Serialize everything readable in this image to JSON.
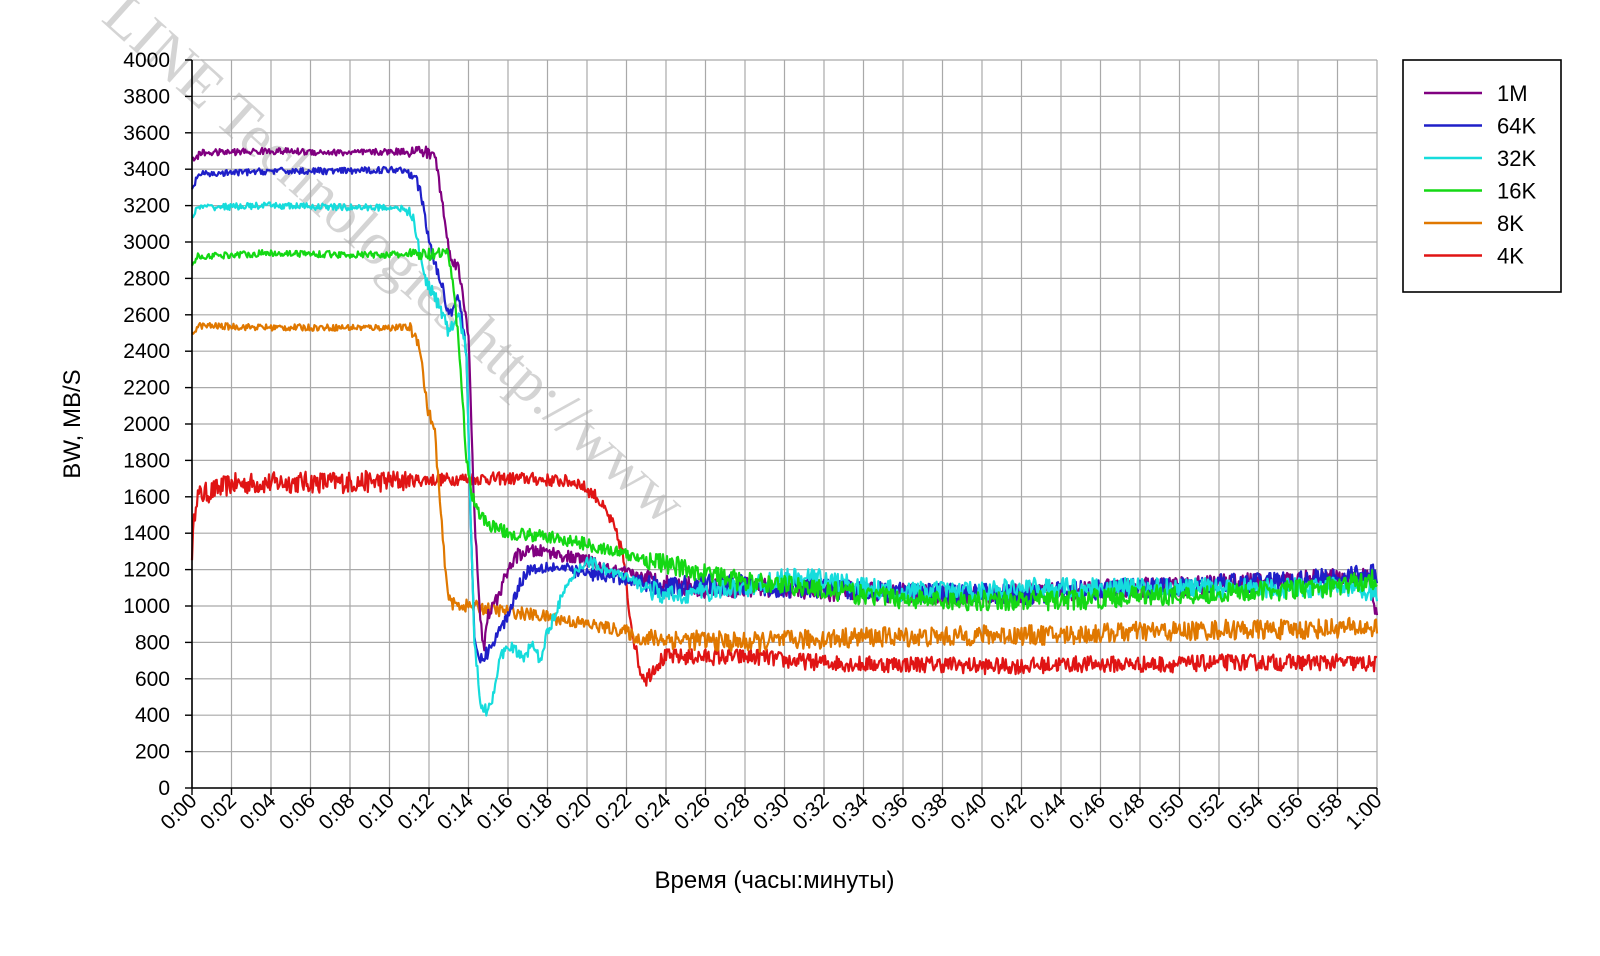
{
  "chart_data": {
    "type": "line",
    "title": "",
    "xlabel": "Время (часы:минуты)",
    "ylabel": "BW, MB/S",
    "ylim": [
      0,
      4000
    ],
    "xlim_minutes": [
      0,
      60
    ],
    "y_ticks": [
      "0",
      "200",
      "400",
      "600",
      "800",
      "1000",
      "1200",
      "1400",
      "1600",
      "1800",
      "2000",
      "2200",
      "2400",
      "2600",
      "2800",
      "3000",
      "3200",
      "3400",
      "3600",
      "3800",
      "4000"
    ],
    "x_ticks": [
      "0:00",
      "0:02",
      "0:04",
      "0:06",
      "0:08",
      "0:10",
      "0:12",
      "0:14",
      "0:16",
      "0:18",
      "0:20",
      "0:22",
      "0:24",
      "0:26",
      "0:28",
      "0:30",
      "0:32",
      "0:34",
      "0:36",
      "0:38",
      "0:40",
      "0:42",
      "0:44",
      "0:46",
      "0:48",
      "0:50",
      "0:52",
      "0:54",
      "0:56",
      "0:58",
      "1:00"
    ],
    "grid": true,
    "legend_position": "top-right",
    "watermark": "LINE Technologies http://www",
    "series": [
      {
        "name": "1M",
        "color": "#800080",
        "points": [
          [
            0,
            3450
          ],
          [
            0.5,
            3490
          ],
          [
            4,
            3500
          ],
          [
            8,
            3490
          ],
          [
            11.5,
            3500
          ],
          [
            12.3,
            3480
          ],
          [
            12.7,
            3200
          ],
          [
            13,
            2950
          ],
          [
            13.5,
            2850
          ],
          [
            14,
            2500
          ],
          [
            14.3,
            1500
          ],
          [
            14.6,
            900
          ],
          [
            14.8,
            780
          ],
          [
            15,
            950
          ],
          [
            15.5,
            1050
          ],
          [
            16,
            1200
          ],
          [
            16.5,
            1280
          ],
          [
            17,
            1300
          ],
          [
            18,
            1300
          ],
          [
            19,
            1270
          ],
          [
            20,
            1250
          ],
          [
            21,
            1200
          ],
          [
            22,
            1180
          ],
          [
            24,
            1120
          ],
          [
            26,
            1100
          ],
          [
            28,
            1100
          ],
          [
            30,
            1100
          ],
          [
            32,
            1080
          ],
          [
            34,
            1080
          ],
          [
            36,
            1070
          ],
          [
            38,
            1060
          ],
          [
            40,
            1060
          ],
          [
            42,
            1070
          ],
          [
            44,
            1080
          ],
          [
            46,
            1090
          ],
          [
            48,
            1100
          ],
          [
            50,
            1110
          ],
          [
            52,
            1120
          ],
          [
            54,
            1130
          ],
          [
            56,
            1140
          ],
          [
            58,
            1150
          ],
          [
            59.6,
            1150
          ],
          [
            60,
            920
          ]
        ]
      },
      {
        "name": "64K",
        "color": "#1f1fc8",
        "points": [
          [
            0,
            3280
          ],
          [
            0.3,
            3370
          ],
          [
            4,
            3390
          ],
          [
            8,
            3390
          ],
          [
            10.5,
            3400
          ],
          [
            11.3,
            3380
          ],
          [
            11.7,
            3200
          ],
          [
            12,
            3000
          ],
          [
            12.4,
            2850
          ],
          [
            12.8,
            2700
          ],
          [
            13,
            2600
          ],
          [
            13.5,
            2700
          ],
          [
            13.9,
            2400
          ],
          [
            14.1,
            1500
          ],
          [
            14.3,
            800
          ],
          [
            14.6,
            700
          ],
          [
            15,
            750
          ],
          [
            15.5,
            850
          ],
          [
            16,
            950
          ],
          [
            16.5,
            1100
          ],
          [
            17,
            1200
          ],
          [
            18,
            1220
          ],
          [
            19,
            1200
          ],
          [
            20,
            1180
          ],
          [
            21,
            1160
          ],
          [
            22,
            1150
          ],
          [
            24,
            1100
          ],
          [
            26,
            1120
          ],
          [
            28,
            1120
          ],
          [
            30,
            1100
          ],
          [
            32,
            1100
          ],
          [
            34,
            1080
          ],
          [
            36,
            1080
          ],
          [
            38,
            1070
          ],
          [
            40,
            1070
          ],
          [
            42,
            1060
          ],
          [
            44,
            1080
          ],
          [
            46,
            1090
          ],
          [
            48,
            1100
          ],
          [
            50,
            1100
          ],
          [
            52,
            1120
          ],
          [
            54,
            1130
          ],
          [
            56,
            1140
          ],
          [
            58,
            1160
          ],
          [
            60,
            1180
          ]
        ]
      },
      {
        "name": "32K",
        "color": "#16dcdc",
        "points": [
          [
            0,
            3130
          ],
          [
            0.3,
            3190
          ],
          [
            4,
            3200
          ],
          [
            8,
            3190
          ],
          [
            10.5,
            3190
          ],
          [
            11.2,
            3140
          ],
          [
            11.5,
            2950
          ],
          [
            11.8,
            2800
          ],
          [
            12.3,
            2700
          ],
          [
            12.7,
            2600
          ],
          [
            13,
            2500
          ],
          [
            13.5,
            2600
          ],
          [
            13.9,
            2400
          ],
          [
            14.1,
            1500
          ],
          [
            14.3,
            800
          ],
          [
            14.6,
            480
          ],
          [
            14.9,
            420
          ],
          [
            15.2,
            500
          ],
          [
            15.6,
            700
          ],
          [
            16,
            800
          ],
          [
            16.4,
            750
          ],
          [
            16.8,
            700
          ],
          [
            17.2,
            800
          ],
          [
            17.6,
            700
          ],
          [
            18,
            850
          ],
          [
            18.5,
            1000
          ],
          [
            19,
            1100
          ],
          [
            19.5,
            1200
          ],
          [
            20,
            1250
          ],
          [
            21,
            1200
          ],
          [
            22,
            1150
          ],
          [
            23,
            1100
          ],
          [
            24,
            1050
          ],
          [
            26,
            1080
          ],
          [
            28,
            1100
          ],
          [
            30,
            1150
          ],
          [
            32,
            1150
          ],
          [
            34,
            1100
          ],
          [
            36,
            1080
          ],
          [
            38,
            1080
          ],
          [
            40,
            1080
          ],
          [
            42,
            1100
          ],
          [
            44,
            1100
          ],
          [
            46,
            1100
          ],
          [
            48,
            1100
          ],
          [
            50,
            1100
          ],
          [
            52,
            1100
          ],
          [
            54,
            1100
          ],
          [
            56,
            1100
          ],
          [
            58,
            1100
          ],
          [
            60,
            1080
          ]
        ]
      },
      {
        "name": "16K",
        "color": "#14d814",
        "points": [
          [
            0,
            2870
          ],
          [
            0.3,
            2920
          ],
          [
            4,
            2940
          ],
          [
            8,
            2930
          ],
          [
            12,
            2930
          ],
          [
            13,
            2930
          ],
          [
            13.3,
            2700
          ],
          [
            13.6,
            2300
          ],
          [
            13.9,
            1800
          ],
          [
            14.2,
            1600
          ],
          [
            14.6,
            1500
          ],
          [
            15,
            1450
          ],
          [
            16,
            1400
          ],
          [
            18,
            1380
          ],
          [
            20,
            1340
          ],
          [
            22,
            1280
          ],
          [
            24,
            1230
          ],
          [
            26,
            1180
          ],
          [
            28,
            1130
          ],
          [
            30,
            1120
          ],
          [
            32,
            1090
          ],
          [
            34,
            1060
          ],
          [
            36,
            1040
          ],
          [
            38,
            1030
          ],
          [
            40,
            1030
          ],
          [
            42,
            1030
          ],
          [
            44,
            1030
          ],
          [
            46,
            1040
          ],
          [
            48,
            1060
          ],
          [
            50,
            1060
          ],
          [
            52,
            1070
          ],
          [
            54,
            1080
          ],
          [
            56,
            1090
          ],
          [
            58,
            1110
          ],
          [
            60,
            1150
          ]
        ]
      },
      {
        "name": "8K",
        "color": "#e07800",
        "points": [
          [
            0,
            2490
          ],
          [
            0.3,
            2540
          ],
          [
            4,
            2530
          ],
          [
            8,
            2530
          ],
          [
            11,
            2530
          ],
          [
            11.5,
            2450
          ],
          [
            11.9,
            2100
          ],
          [
            12.3,
            1950
          ],
          [
            12.6,
            1500
          ],
          [
            12.9,
            1100
          ],
          [
            13.2,
            1010
          ],
          [
            14,
            1000
          ],
          [
            16,
            970
          ],
          [
            18,
            940
          ],
          [
            20,
            900
          ],
          [
            22,
            860
          ],
          [
            22.5,
            820
          ],
          [
            24,
            820
          ],
          [
            26,
            810
          ],
          [
            28,
            800
          ],
          [
            30,
            810
          ],
          [
            32,
            820
          ],
          [
            34,
            830
          ],
          [
            36,
            830
          ],
          [
            38,
            830
          ],
          [
            40,
            840
          ],
          [
            42,
            840
          ],
          [
            44,
            840
          ],
          [
            46,
            850
          ],
          [
            48,
            860
          ],
          [
            50,
            860
          ],
          [
            52,
            870
          ],
          [
            54,
            870
          ],
          [
            56,
            870
          ],
          [
            58,
            880
          ],
          [
            60,
            880
          ]
        ]
      },
      {
        "name": "4K",
        "color": "#e01414",
        "points": [
          [
            0,
            1300
          ],
          [
            0.2,
            1600
          ],
          [
            2,
            1670
          ],
          [
            5,
            1680
          ],
          [
            8,
            1680
          ],
          [
            11,
            1690
          ],
          [
            14,
            1700
          ],
          [
            17,
            1700
          ],
          [
            19.5,
            1680
          ],
          [
            20.5,
            1600
          ],
          [
            21.3,
            1450
          ],
          [
            21.8,
            1300
          ],
          [
            22.1,
            1000
          ],
          [
            22.4,
            800
          ],
          [
            22.7,
            640
          ],
          [
            23,
            600
          ],
          [
            23.5,
            680
          ],
          [
            24,
            720
          ],
          [
            26,
            720
          ],
          [
            28,
            720
          ],
          [
            29,
            720
          ],
          [
            30,
            700
          ],
          [
            32,
            690
          ],
          [
            34,
            680
          ],
          [
            36,
            680
          ],
          [
            38,
            680
          ],
          [
            40,
            670
          ],
          [
            42,
            670
          ],
          [
            44,
            680
          ],
          [
            46,
            680
          ],
          [
            48,
            680
          ],
          [
            50,
            680
          ],
          [
            52,
            690
          ],
          [
            54,
            690
          ],
          [
            56,
            690
          ],
          [
            58,
            690
          ],
          [
            60,
            680
          ]
        ]
      }
    ]
  }
}
